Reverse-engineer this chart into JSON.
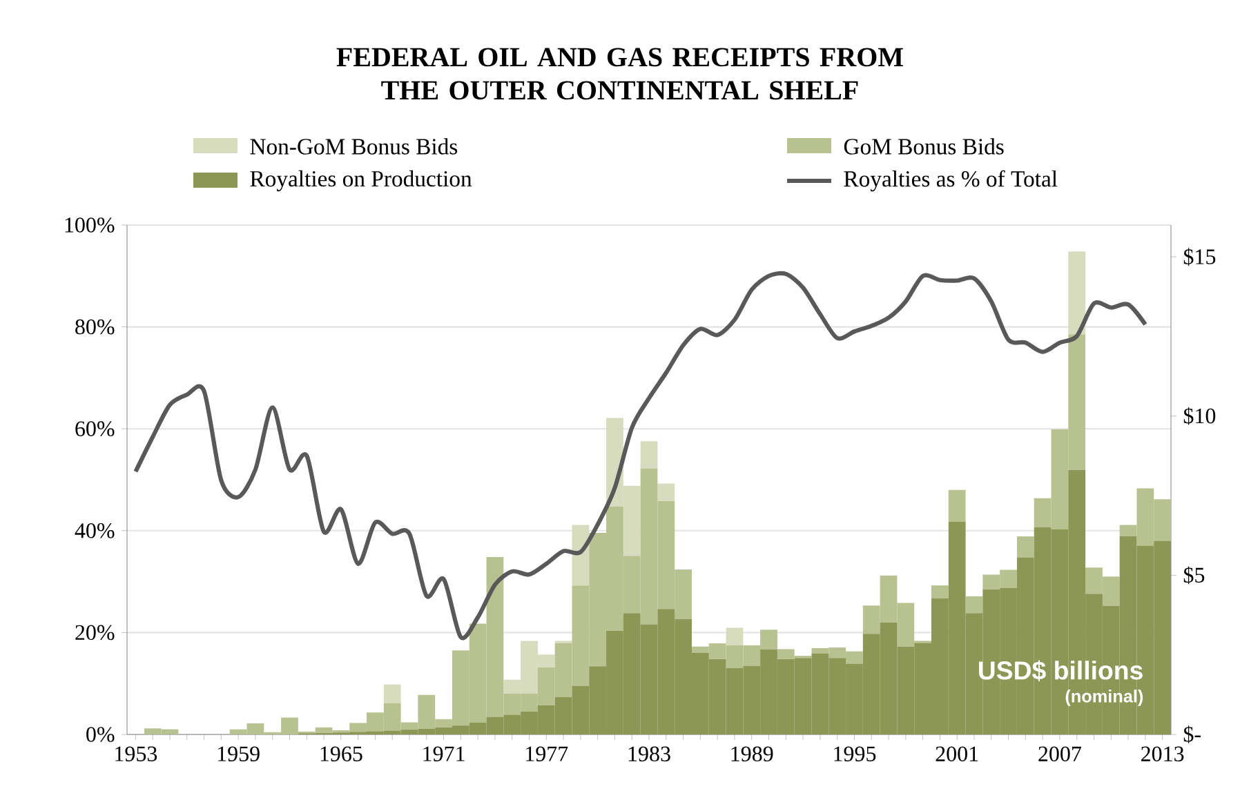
{
  "chart_data": {
    "type": "bar",
    "stacked": true,
    "title": "FEDERAL OIL AND GAS RECEIPTS FROM THE OUTER CONTINENTAL SHELF",
    "categories": [
      "1953",
      null,
      null,
      null,
      null,
      null,
      "1959",
      null,
      null,
      null,
      null,
      null,
      "1965",
      null,
      null,
      null,
      null,
      null,
      "1971",
      null,
      null,
      null,
      null,
      null,
      "1977",
      null,
      null,
      null,
      null,
      null,
      "1983",
      null,
      null,
      null,
      null,
      null,
      "1989",
      null,
      null,
      null,
      null,
      null,
      "1995",
      null,
      null,
      null,
      null,
      null,
      "2001",
      null,
      null,
      null,
      null,
      null,
      "2007",
      null,
      null,
      null,
      null,
      null,
      "2013"
    ],
    "series": [
      {
        "name": "Royalties on Production",
        "axis": "y2",
        "color": "#8c9655",
        "values": [
          0,
          0,
          0,
          0,
          0,
          0,
          0,
          0,
          null,
          null,
          0.04,
          0.05,
          0.06,
          0.08,
          0.1,
          0.12,
          0.15,
          0.18,
          0.22,
          0.28,
          0.37,
          0.55,
          0.62,
          0.72,
          0.91,
          1.17,
          1.53,
          2.14,
          3.26,
          3.81,
          3.46,
          3.94,
          3.62,
          2.57,
          2.37,
          2.08,
          2.15,
          2.68,
          2.37,
          2.4,
          2.54,
          2.4,
          2.22,
          3.16,
          3.52,
          2.76,
          2.87,
          4.27,
          6.68,
          3.81,
          4.56,
          4.6,
          5.56,
          6.51,
          6.44,
          8.31,
          4.42,
          4.03,
          6.22,
          5.93,
          6.08
        ]
      },
      {
        "name": "GoM Bonus Bids",
        "axis": "y2",
        "color": "#b7c290",
        "values": [
          0,
          0.19,
          0.16,
          0,
          0,
          0,
          0.16,
          0.35,
          0.07,
          0.53,
          0.05,
          0.17,
          0.07,
          0.28,
          0.59,
          0.86,
          0.23,
          1.06,
          0.26,
          2.36,
          3.11,
          5.02,
          0.66,
          0.56,
          1.2,
          1.69,
          3.15,
          4.19,
          3.9,
          1.8,
          4.89,
          3.39,
          1.56,
          0.19,
          0.49,
          0.72,
          0.65,
          0.61,
          0.31,
          0.07,
          0.17,
          0.33,
          0.39,
          0.89,
          1.47,
          1.37,
          0.07,
          0.41,
          1.0,
          0.53,
          0.46,
          0.57,
          0.66,
          0.91,
          3.14,
          4.26,
          0.82,
          0.93,
          0.36,
          1.8,
          1.31
        ]
      },
      {
        "name": "Non-GoM Bonus Bids",
        "axis": "y2",
        "color": "#d6dcbd",
        "values": [
          0,
          0,
          0,
          0,
          0,
          0,
          0,
          0,
          0,
          0,
          0,
          0,
          0,
          0,
          0,
          0.59,
          0,
          0,
          0,
          0,
          0,
          0,
          0.44,
          1.66,
          0.4,
          0.08,
          1.9,
          0,
          2.78,
          2.2,
          0.86,
          0.55,
          0,
          0,
          0,
          0.55,
          0,
          0,
          0,
          0,
          0,
          0,
          0,
          0,
          0,
          0,
          0,
          0,
          0,
          0,
          0,
          0,
          0,
          0,
          0,
          2.6,
          0,
          0,
          0,
          0,
          0
        ]
      },
      {
        "name": "Royalties as % of Total",
        "type": "line",
        "axis": "y",
        "color": "#595959",
        "values": [
          51.6,
          58.4,
          64.7,
          66.7,
          67.4,
          49.9,
          46.6,
          52.0,
          64.2,
          52.0,
          54.7,
          39.8,
          44.2,
          33.5,
          41.6,
          39.4,
          39.4,
          27.2,
          30.5,
          19.1,
          23.0,
          29.4,
          32.0,
          31.4,
          33.5,
          36.0,
          35.8,
          41.2,
          48.4,
          60.2,
          66.0,
          71.0,
          76.4,
          79.6,
          78.4,
          81.4,
          87.3,
          90.0,
          90.4,
          87.7,
          82.5,
          77.8,
          79.1,
          80.2,
          81.8,
          85.0,
          90.0,
          89.2,
          89.1,
          89.5,
          85.0,
          77.5,
          76.9,
          75.1,
          76.9,
          78.2,
          84.6,
          83.8,
          84.4,
          80.5,
          null
        ]
      }
    ],
    "ylim": [
      0,
      100
    ],
    "yticks": [
      {
        "value": 0,
        "label": "0%"
      },
      {
        "value": 20,
        "label": "20%"
      },
      {
        "value": 40,
        "label": "40%"
      },
      {
        "value": 60,
        "label": "60%"
      },
      {
        "value": 80,
        "label": "80%"
      },
      {
        "value": 100,
        "label": "100%"
      }
    ],
    "y2lim": [
      0,
      16
    ],
    "y2ticks": [
      {
        "value": 0,
        "label": "$-"
      },
      {
        "value": 5,
        "label": "$5"
      },
      {
        "value": 10,
        "label": "$10"
      },
      {
        "value": 15,
        "label": "$15"
      }
    ],
    "annotations": [
      "USD$ billions",
      "(nominal)"
    ],
    "grid": "y",
    "legend": "top",
    "marker": "none",
    "line_style": "solid"
  }
}
